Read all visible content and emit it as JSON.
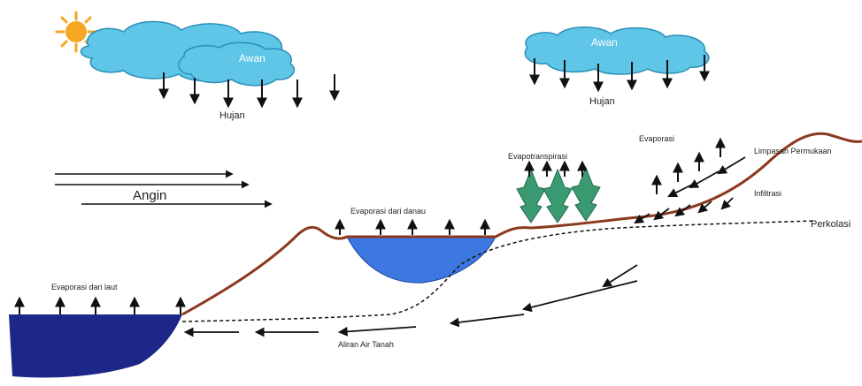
{
  "diagram": {
    "colors": {
      "cloud": "#5fc6e8",
      "cloud_outline": "#2a8fb8",
      "sea": "#1c2788",
      "lake": "#3d78e0",
      "ground_line": "#8b3a1f",
      "tree": "#3a9a72",
      "sun": "#f5a623",
      "arrow": "#111111"
    },
    "labels": {
      "cloud_left": "Awan",
      "cloud_right": "Awan",
      "rain_left": "Hujan",
      "rain_right": "Hujan",
      "wind": "Angin",
      "sea_evap": "Evaporasi dari laut",
      "lake_evap": "Evaporasi dari danau",
      "transpiration": "Evapotranspirasi",
      "evaporation": "Evaporasi",
      "surface_runoff": "Limpasan Permukaan",
      "infiltration": "Infiltrasi",
      "percolation": "Perkolasi",
      "groundwater": "Aliran Air Tanah"
    },
    "icons": [
      "sun-icon",
      "cloud-icon",
      "tree-icon",
      "arrow-icon"
    ]
  }
}
